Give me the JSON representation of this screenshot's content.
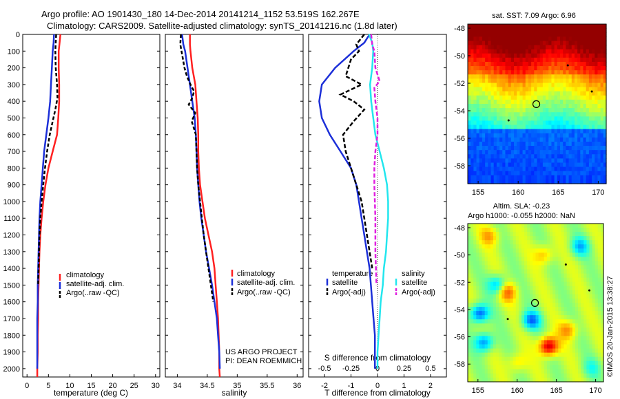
{
  "header": {
    "title_line1": "Argo profile: AO 1901430_180 14-Dec-2014 20141214_1152 53.519S 162.267E",
    "title_line2": "Climatology: CARS2009. Satellite-adjusted climatology: synTS_20141216.nc (1.8d later)"
  },
  "colors": {
    "climatology": "#ff2020",
    "satellite": "#1c2fd8",
    "argo": "#000000",
    "sat_salinity": "#22e6ee",
    "argo_salinity_adj": "#e020e0"
  },
  "chart_data": [
    {
      "type": "line",
      "id": "temperature",
      "xlabel": "temperature (deg C)",
      "ylabel": "",
      "xlim": [
        -1,
        31
      ],
      "ylim": [
        2050,
        0
      ],
      "xticks": [
        "0",
        "5",
        "10",
        "15",
        "20",
        "25",
        "30"
      ],
      "yticks": [
        "0",
        "100",
        "200",
        "300",
        "400",
        "500",
        "600",
        "700",
        "800",
        "900",
        "1000",
        "1100",
        "1200",
        "1300",
        "1400",
        "1500",
        "1600",
        "1700",
        "1800",
        "1900",
        "2000"
      ],
      "legend": [
        "climatology",
        "satellite-adj. clim.",
        "Argo(..raw -QC)"
      ],
      "series": [
        {
          "name": "climatology",
          "color": "climatology",
          "dash": "",
          "x": [
            7.8,
            7.6,
            7.4,
            7.4,
            7.5,
            7.5,
            7.3,
            7.0,
            6.0,
            5.0,
            4.3,
            3.8,
            3.4,
            3.1,
            2.9,
            2.8,
            2.7,
            2.6,
            2.6,
            2.5,
            2.5,
            2.4,
            2.4,
            2.4
          ],
          "y": [
            0,
            50,
            100,
            200,
            300,
            400,
            500,
            600,
            700,
            800,
            900,
            1000,
            1100,
            1200,
            1300,
            1400,
            1500,
            1600,
            1700,
            1800,
            1900,
            2000,
            2030,
            2050
          ]
        },
        {
          "name": "satellite-adj. clim.",
          "color": "satellite",
          "dash": "",
          "x": [
            6.3,
            6.2,
            6.0,
            5.8,
            5.6,
            5.4,
            5.0,
            4.5,
            4.0,
            3.7,
            3.4,
            3.1,
            2.9,
            2.8,
            2.7,
            2.6,
            2.5,
            2.5,
            2.4,
            2.4,
            2.4,
            2.4
          ],
          "y": [
            0,
            50,
            100,
            200,
            300,
            400,
            500,
            600,
            700,
            800,
            900,
            1000,
            1100,
            1200,
            1300,
            1400,
            1500,
            1600,
            1700,
            1800,
            1900,
            2000
          ]
        },
        {
          "name": "Argo(..raw -QC)",
          "color": "argo",
          "dash": "5,3",
          "x": [
            6.8,
            6.7,
            6.6,
            6.7,
            7.0,
            7.1,
            6.6,
            6.0,
            5.3,
            4.7,
            4.2,
            3.8,
            3.4,
            3.1,
            2.9,
            2.8,
            2.7,
            2.6
          ],
          "y": [
            0,
            50,
            100,
            200,
            300,
            380,
            450,
            520,
            600,
            700,
            800,
            900,
            1000,
            1100,
            1200,
            1300,
            1400,
            1500
          ]
        }
      ]
    },
    {
      "type": "line",
      "id": "salinity",
      "xlabel": "salinity",
      "ylabel": "",
      "xlim": [
        33.8,
        36.1
      ],
      "ylim": [
        2050,
        0
      ],
      "xticks": [
        "34",
        "34.5",
        "35",
        "35.5",
        "36"
      ],
      "yticks": [],
      "legend": [
        "climatology",
        "satellite-adj. clim.",
        "Argo(..raw -QC)"
      ],
      "note": [
        "US ARGO PROJECT",
        "PI: DEAN ROEMMICH"
      ],
      "series": [
        {
          "name": "climatology",
          "color": "climatology",
          "dash": "",
          "x": [
            34.21,
            34.21,
            34.22,
            34.25,
            34.3,
            34.32,
            34.34,
            34.35,
            34.35,
            34.36,
            34.38,
            34.42,
            34.46,
            34.52,
            34.58,
            34.62,
            34.64,
            34.66,
            34.68,
            34.69,
            34.7,
            34.7,
            34.71
          ],
          "y": [
            0,
            60,
            100,
            200,
            300,
            400,
            500,
            600,
            700,
            800,
            900,
            1000,
            1100,
            1200,
            1300,
            1400,
            1500,
            1600,
            1700,
            1800,
            1900,
            2000,
            2050
          ]
        },
        {
          "name": "satellite-adj. clim.",
          "color": "satellite",
          "dash": "",
          "x": [
            34.08,
            34.1,
            34.13,
            34.17,
            34.21,
            34.25,
            34.29,
            34.31,
            34.32,
            34.33,
            34.35,
            34.37,
            34.4,
            34.44,
            34.48,
            34.53,
            34.58,
            34.62,
            34.66,
            34.68,
            34.7,
            34.71
          ],
          "y": [
            0,
            60,
            100,
            200,
            300,
            400,
            500,
            600,
            700,
            800,
            900,
            1000,
            1100,
            1200,
            1300,
            1400,
            1500,
            1600,
            1700,
            1800,
            1900,
            2000
          ]
        },
        {
          "name": "Argo(..raw -QC)",
          "color": "argo",
          "dash": "5,3",
          "x": [
            34.06,
            34.05,
            34.07,
            34.12,
            34.16,
            34.22,
            34.28,
            34.25,
            34.19,
            34.3,
            34.24,
            34.31,
            34.32,
            34.33,
            34.35,
            34.38,
            34.41,
            34.44,
            34.48,
            34.52,
            34.56,
            34.6
          ],
          "y": [
            0,
            60,
            100,
            200,
            250,
            300,
            340,
            380,
            420,
            470,
            520,
            600,
            700,
            800,
            900,
            1000,
            1100,
            1200,
            1300,
            1400,
            1500,
            1600
          ]
        }
      ]
    },
    {
      "type": "line",
      "id": "difference",
      "xlabel": "T difference from climatology",
      "xlabel_top": "S difference from climatology",
      "xlim": [
        -2.6,
        2.6
      ],
      "ylim": [
        2050,
        0
      ],
      "xticks": [
        "-2",
        "-1",
        "0",
        "1",
        "2"
      ],
      "xticks_s": [
        "-0.5",
        "-0.25",
        "0",
        "0.25",
        "0.5"
      ],
      "legend_t": [
        "temperature",
        "satellite",
        "Argo(-adj)"
      ],
      "legend_s": [
        "salinity",
        "satellite",
        "Argo(-adj)"
      ],
      "series": [
        {
          "name": "temperature satellite",
          "color": "satellite",
          "dash": "",
          "x": [
            -0.3,
            -0.5,
            -0.9,
            -1.6,
            -2.1,
            -2.2,
            -2.1,
            -1.8,
            -1.4,
            -1.0,
            -0.8,
            -0.7,
            -0.6,
            -0.5,
            -0.4,
            -0.3,
            -0.25,
            -0.2,
            -0.15,
            -0.1,
            -0.1,
            -0.1
          ],
          "y": [
            0,
            50,
            100,
            200,
            300,
            400,
            500,
            600,
            700,
            800,
            900,
            1000,
            1100,
            1200,
            1300,
            1400,
            1500,
            1600,
            1700,
            1800,
            1900,
            2000
          ]
        },
        {
          "name": "temperature Argo(-adj)",
          "color": "argo",
          "dash": "6,3",
          "x": [
            -0.5,
            -0.8,
            -0.7,
            -1.0,
            -1.2,
            -0.6,
            -1.4,
            -0.9,
            -0.5,
            -0.9,
            -1.3,
            -1.2,
            -1.0,
            -0.8,
            -0.6,
            -0.5,
            -0.4,
            -0.3,
            -0.2
          ],
          "y": [
            0,
            60,
            100,
            150,
            250,
            300,
            360,
            400,
            450,
            520,
            600,
            700,
            800,
            900,
            1000,
            1100,
            1200,
            1300,
            1400
          ]
        },
        {
          "name": "salinity satellite",
          "color": "sat_salinity",
          "dash": "",
          "x": [
            -0.08,
            -0.05,
            -0.04,
            -0.05,
            -0.07,
            -0.06,
            -0.04,
            -0.02,
            0.02,
            0.06,
            0.09,
            0.1,
            0.1,
            0.09,
            0.08,
            0.06,
            0.05,
            0.03,
            0.02,
            0.01,
            0.0,
            0.0
          ],
          "y": [
            0,
            50,
            100,
            200,
            300,
            400,
            500,
            600,
            700,
            800,
            900,
            1000,
            1100,
            1200,
            1300,
            1400,
            1500,
            1600,
            1700,
            1800,
            1900,
            2000
          ]
        },
        {
          "name": "salinity Argo(-adj)",
          "color": "argo_salinity_adj",
          "dash": "6,3",
          "x": [
            -0.06,
            -0.05,
            -0.03,
            -0.02,
            0.02,
            -0.03,
            -0.02,
            0.0,
            0.0,
            -0.02,
            -0.03,
            -0.03,
            -0.02,
            -0.02,
            -0.01
          ],
          "y": [
            0,
            60,
            100,
            200,
            280,
            320,
            400,
            500,
            600,
            700,
            800,
            900,
            1100,
            1300,
            1500
          ]
        }
      ]
    },
    {
      "type": "heatmap",
      "id": "sst_map",
      "title": "sat. SST: 7.09 Argo: 6.96",
      "xlim": [
        153.7,
        171
      ],
      "ylim": [
        -59.3,
        -47.7
      ],
      "xticks": [
        "155",
        "160",
        "165",
        "170"
      ],
      "yticks": [
        "-48",
        "-50",
        "-52",
        "-54",
        "-56",
        "-58"
      ]
    },
    {
      "type": "heatmap",
      "id": "sla_map",
      "title": "Altim. SLA: -0.23",
      "subtitle": "Argo h1000: -0.055 h2000: NaN",
      "xlim": [
        153.7,
        171
      ],
      "ylim": [
        -59.3,
        -47.7
      ],
      "xticks": [
        "155",
        "160",
        "165",
        "170"
      ],
      "yticks": [
        "-48",
        "-50",
        "-52",
        "-54",
        "-56",
        "-58"
      ],
      "credit": "©IMOS 20-Jan-2015 13:38:27"
    }
  ]
}
